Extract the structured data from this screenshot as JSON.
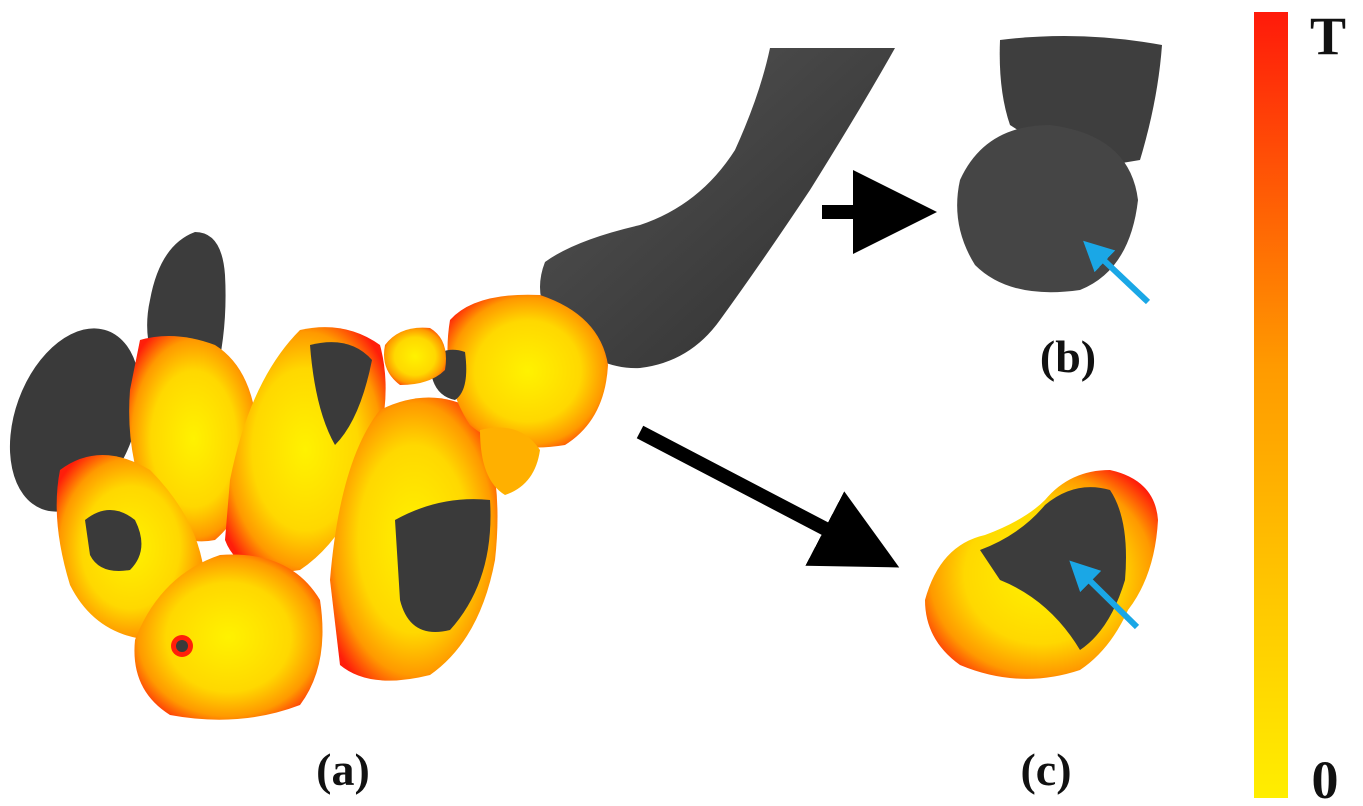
{
  "panels": {
    "a": {
      "label": "(a)"
    },
    "b": {
      "label": "(b)"
    },
    "c": {
      "label": "(c)"
    }
  },
  "color_scale": {
    "max_label": "T",
    "min_label": "0",
    "colors": {
      "max": "#ff1a0a",
      "mid": "#ff9a00",
      "min": "#ffee00"
    }
  },
  "colors": {
    "bone": "#3e3e3e",
    "bone_highlight": "#5a5a5a",
    "heat_low": "#fff200",
    "heat_mid": "#ff9900",
    "heat_high": "#ff1e0a",
    "arrow_black": "#000000",
    "arrow_blue": "#1aa7e6"
  }
}
